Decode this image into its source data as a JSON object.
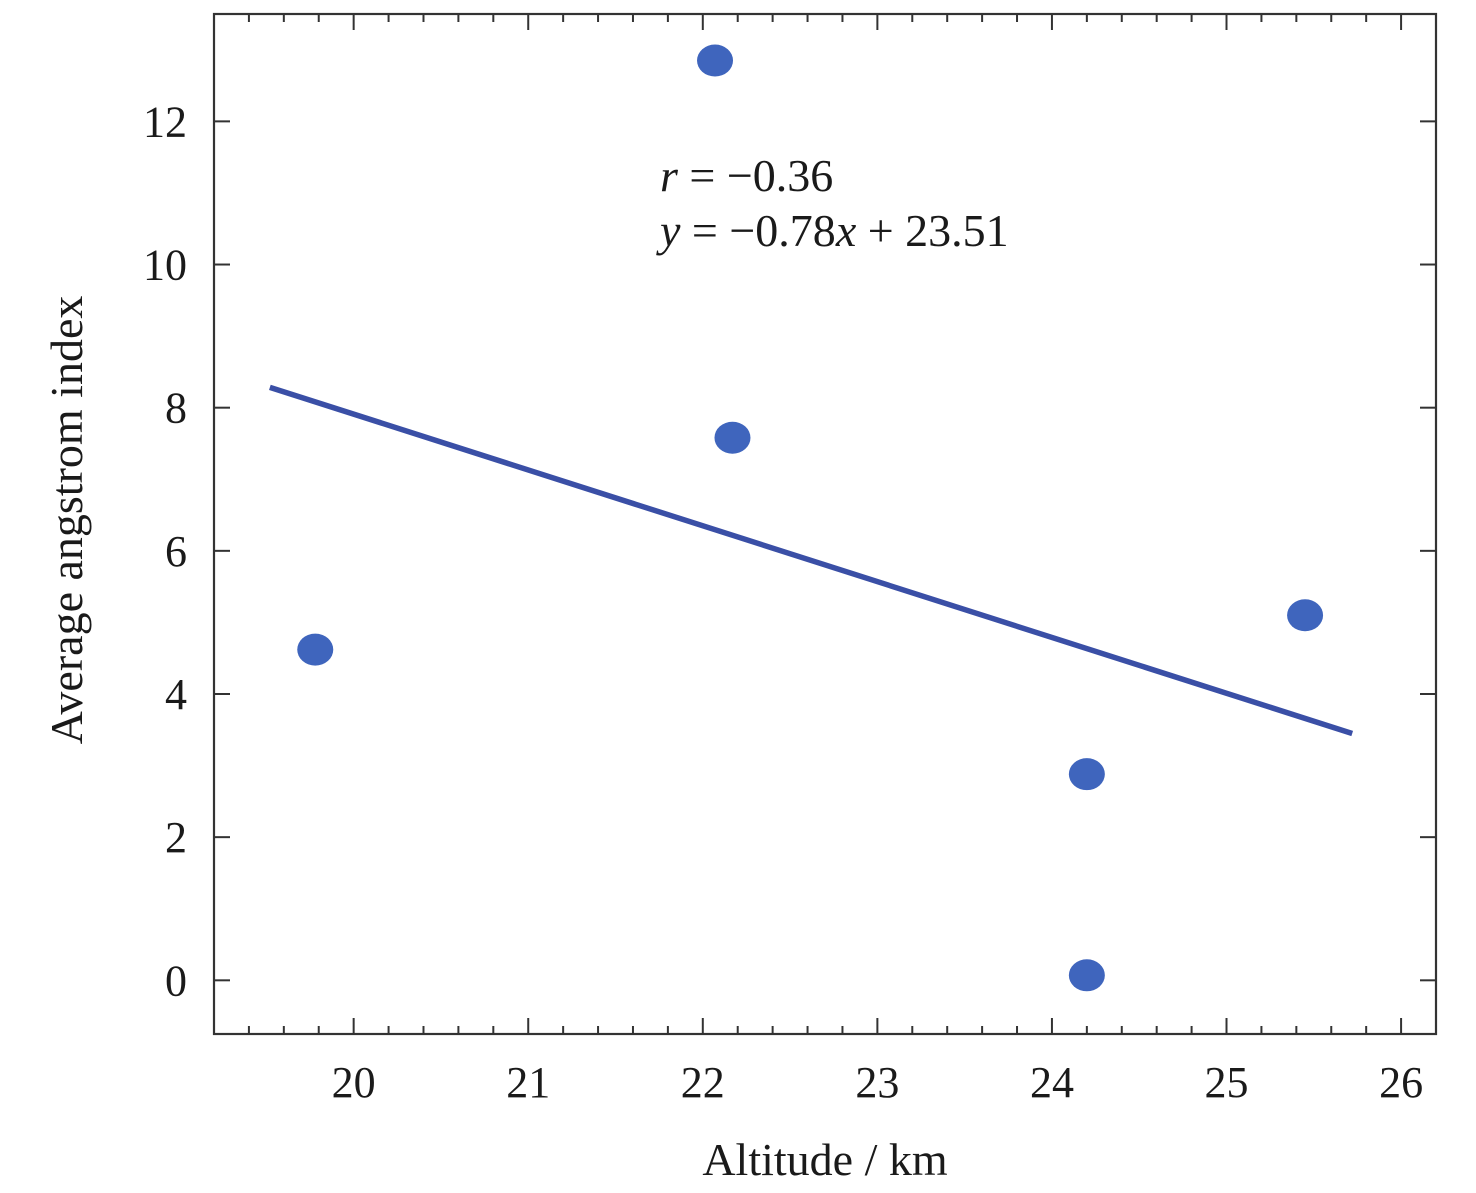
{
  "chart_data": {
    "type": "scatter",
    "xlabel": "Altitude / km",
    "ylabel": "Average angstrom index",
    "xlim": [
      19.2,
      26.2
    ],
    "ylim": [
      -0.75,
      13.5
    ],
    "x_ticks": [
      20,
      21,
      22,
      23,
      24,
      25,
      26
    ],
    "y_ticks": [
      0,
      2,
      4,
      6,
      8,
      10,
      12
    ],
    "grid": false,
    "colors": {
      "points": "#3f65bd",
      "fit_line": "#3a4fa6"
    },
    "series": [
      {
        "points": [
          {
            "x": 19.78,
            "y": 4.62
          },
          {
            "x": 22.07,
            "y": 12.85
          },
          {
            "x": 22.17,
            "y": 7.58
          },
          {
            "x": 24.2,
            "y": 2.88
          },
          {
            "x": 24.2,
            "y": 0.07
          },
          {
            "x": 25.45,
            "y": 5.1
          }
        ]
      }
    ],
    "fit_line": {
      "slope": -0.78,
      "intercept": 23.51,
      "x_range": [
        19.52,
        25.72
      ]
    },
    "annotations": {
      "r_label": "r",
      "r_value": " = −0.36",
      "eq_y": "y",
      "eq_mid": " = −0.78",
      "eq_x": "x",
      "eq_end": " + 23.51"
    }
  }
}
